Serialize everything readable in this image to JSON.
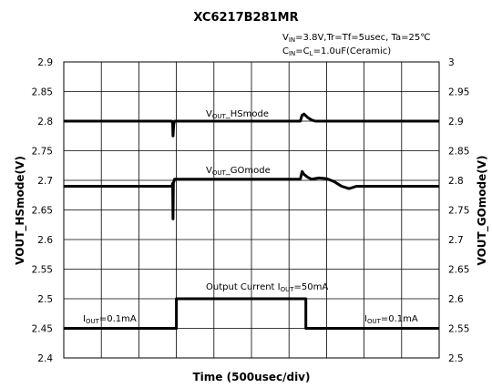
{
  "chart_data": {
    "type": "line",
    "title": "XC6217B281MR",
    "conditions": {
      "line1": {
        "a": "V",
        "a_sub": "IN",
        "b": "=3.8V,Tr=Tf=5usec, Ta=25℃"
      },
      "line2": {
        "a": "C",
        "a_sub": "IN",
        "b": "=C",
        "c_sub": "L",
        "d": "=1.0uF(Ceramic)"
      }
    },
    "xlabel": "Time (500usec/div)",
    "ylabel_left": "VOUT_HSmode(V)",
    "ylabel_right": "VOUT_GOmode(V)",
    "x_divisions": 10,
    "ylim_left": [
      2.4,
      2.9
    ],
    "ylim_right": [
      2.5,
      3.0
    ],
    "yticks_left": [
      "2.9",
      "2.85",
      "2.8",
      "2.75",
      "2.7",
      "2.65",
      "2.6",
      "2.55",
      "2.5",
      "2.45",
      "2.4"
    ],
    "yticks_right": [
      "3",
      "2.95",
      "2.9",
      "2.85",
      "2.8",
      "2.75",
      "2.7",
      "2.65",
      "2.6",
      "2.55",
      "2.5"
    ],
    "grid": true,
    "series": [
      {
        "name": "VOUT_HSmode",
        "axis": "left",
        "x": [
          0,
          2.88,
          2.9,
          2.91,
          2.93,
          2.95,
          3.0,
          6.3,
          6.35,
          6.4,
          6.5,
          6.6,
          6.7,
          6.8,
          7.0,
          10
        ],
        "y": [
          2.8,
          2.8,
          2.796,
          2.775,
          2.795,
          2.8,
          2.8,
          2.8,
          2.81,
          2.812,
          2.806,
          2.802,
          2.8,
          2.8,
          2.8,
          2.8
        ]
      },
      {
        "name": "VOUT_GOmode",
        "axis": "right",
        "x": [
          0,
          2.88,
          2.9,
          2.91,
          2.92,
          2.95,
          3.0,
          6.3,
          6.35,
          6.4,
          6.5,
          6.6,
          6.8,
          7.0,
          7.2,
          7.4,
          7.6,
          7.8,
          8.0,
          10
        ],
        "y": [
          2.79,
          2.79,
          2.795,
          2.735,
          2.795,
          2.802,
          2.802,
          2.802,
          2.815,
          2.81,
          2.805,
          2.802,
          2.804,
          2.803,
          2.798,
          2.79,
          2.786,
          2.79,
          2.79,
          2.79
        ]
      },
      {
        "name": "Output Current",
        "axis": "left",
        "x": [
          0,
          3.0,
          3.0,
          6.45,
          6.45,
          10
        ],
        "y": [
          2.45,
          2.45,
          2.5,
          2.5,
          2.45,
          2.45
        ]
      }
    ],
    "annotations": {
      "hs": {
        "a": "V",
        "a_sub": "OUT",
        "b": "_HSmode"
      },
      "go": {
        "a": "V",
        "a_sub": "OUT",
        "b": "_GOmode"
      },
      "current": {
        "a": "Output Current I",
        "a_sub": "OUT",
        "b": "=50mA"
      },
      "iout_left": {
        "a": "I",
        "a_sub": "OUT",
        "b": "=0.1mA"
      },
      "iout_right": {
        "a": "I",
        "a_sub": "OUT",
        "b": "=0.1mA"
      }
    }
  }
}
